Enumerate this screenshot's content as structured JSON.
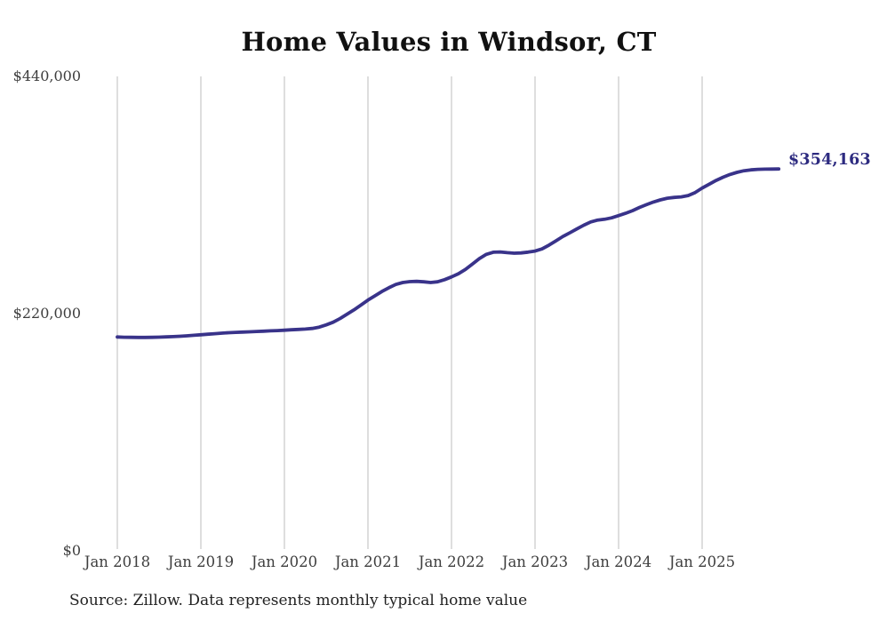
{
  "chart": {
    "title": "Home Values in Windsor, CT",
    "end_label": "$354,163",
    "source_note": "Source: Zillow. Data represents monthly typical home value",
    "colors": {
      "line": "#39338a",
      "end_label": "#2d2b80",
      "gridline": "#d6d6d6",
      "title": "#111111",
      "tick_text": "#3e3e3e",
      "source_text": "#222222"
    }
  },
  "chart_data": {
    "type": "line",
    "title": "Home Values in Windsor, CT",
    "series_name": "Monthly typical home value",
    "x_start": "2018-01",
    "x_end": "2025-12",
    "x_interval": "monthly",
    "x_tick_labels": [
      "Jan 2018",
      "Jan 2019",
      "Jan 2020",
      "Jan 2021",
      "Jan 2022",
      "Jan 2023",
      "Jan 2024",
      "Jan 2025"
    ],
    "y_tick_labels": [
      "$0",
      "$220,000",
      "$440,000"
    ],
    "y_tick_values": [
      0,
      220000,
      440000
    ],
    "ylim": [
      0,
      440000
    ],
    "grid": "vertical-only",
    "legend": "none",
    "final_value": 354163,
    "values_monthly": [
      198300,
      198100,
      198000,
      197900,
      197900,
      198000,
      198200,
      198400,
      198700,
      199000,
      199400,
      199900,
      200400,
      200900,
      201400,
      201900,
      202300,
      202600,
      202900,
      203100,
      203400,
      203700,
      204000,
      204300,
      204600,
      205000,
      205300,
      205700,
      206200,
      207500,
      209500,
      212000,
      215500,
      219500,
      223500,
      228000,
      232500,
      236500,
      240500,
      244000,
      247000,
      248800,
      249700,
      249900,
      249500,
      248800,
      249500,
      251500,
      254000,
      257000,
      261000,
      266000,
      271000,
      275000,
      276900,
      277200,
      276500,
      276000,
      276300,
      277000,
      278000,
      280000,
      283500,
      287500,
      291500,
      295000,
      298500,
      302000,
      305000,
      306800,
      307500,
      308800,
      310900,
      313000,
      315500,
      318500,
      321000,
      323500,
      325500,
      327000,
      327800,
      328300,
      329500,
      332300,
      336400,
      340000,
      343500,
      346500,
      349000,
      351000,
      352500,
      353300,
      353800,
      354000,
      354100,
      354163
    ]
  }
}
